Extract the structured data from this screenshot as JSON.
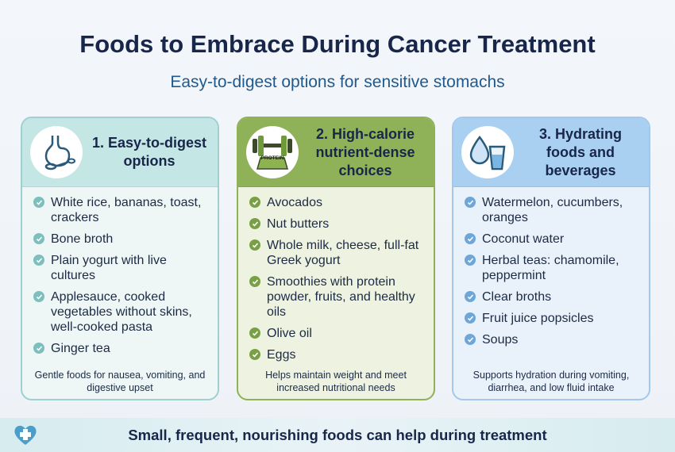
{
  "header": {
    "title": "Foods to Embrace During Cancer Treatment",
    "subtitle": "Easy-to-digest options for sensitive stomachs"
  },
  "cards": [
    {
      "title": "1. Easy-to-digest options",
      "items": [
        "White rice, bananas, toast, crackers",
        "Bone broth",
        "Plain yogurt with live cultures",
        "Applesauce, cooked vegetables without skins, well-cooked pasta",
        "Ginger tea"
      ],
      "note": "Gentle foods for nausea, vomiting, and digestive upset"
    },
    {
      "title": "2. High-calorie nutrient-dense choices",
      "icon_label": "PROTEIN",
      "items": [
        "Avocados",
        "Nut butters",
        "Whole milk, cheese, full-fat Greek yogurt",
        "Smoothies with protein powder, fruits, and healthy oils",
        "Olive oil",
        "Eggs"
      ],
      "note": "Helps maintain weight and meet increased nutritional needs"
    },
    {
      "title": "3. Hydrating foods and beverages",
      "items": [
        "Watermelon, cucumbers, oranges",
        "Coconut water",
        "Herbal teas: chamomile, peppermint",
        "Clear broths",
        "Fruit juice popsicles",
        "Soups"
      ],
      "note": "Supports hydration during vomiting, diarrhea, and low fluid intake"
    }
  ],
  "footer": {
    "text": "Small, frequent, nourishing foods can help during treatment"
  }
}
